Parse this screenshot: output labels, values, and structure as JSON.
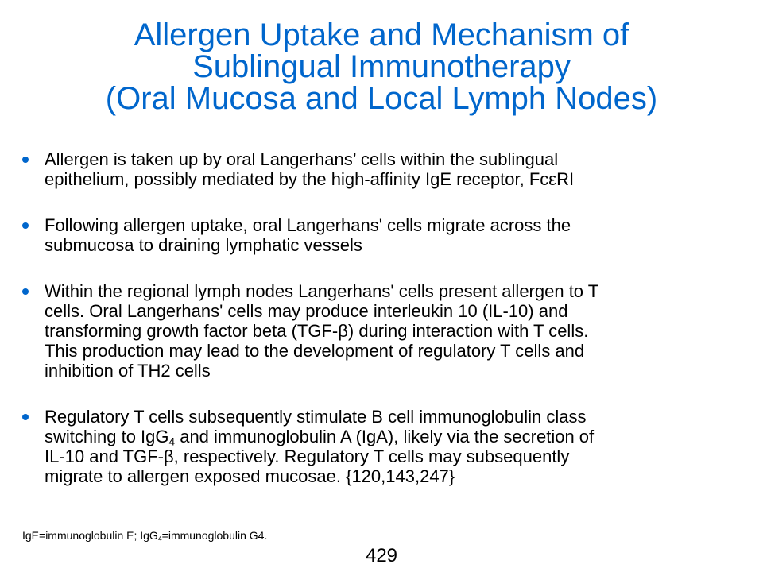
{
  "colors": {
    "accent": "#0066CC",
    "text": "#000000",
    "background": "#FFFFFF"
  },
  "slide": {
    "title_lines": [
      "Allergen Uptake and Mechanism of",
      "Sublingual Immunotherapy",
      "(Oral Mucosa and Local Lymph Nodes)"
    ],
    "bullets": [
      {
        "lines": [
          "Allergen is taken up by oral Langerhans’ cells within the sublingual",
          "epithelium, possibly mediated by the high-affinity IgE receptor, FcεRI"
        ]
      },
      {
        "lines": [
          "Following allergen uptake, oral Langerhans' cells migrate across the",
          "submucosa to draining lymphatic vessels"
        ]
      },
      {
        "lines": [
          "Within the regional lymph nodes Langerhans' cells present allergen to T",
          "cells. Oral Langerhans' cells may produce interleukin 10 (IL-10) and",
          "transforming growth factor beta (TGF-β) during interaction with T cells.",
          "This production may lead to the development of regulatory T cells and",
          "inhibition of TH2 cells"
        ]
      },
      {
        "line1": "Regulatory T cells subsequently stimulate B cell immunoglobulin class",
        "line2_pre": "switching to IgG",
        "line2_sub": "4",
        "line2_post": " and immunoglobulin A (IgA), likely via the secretion of",
        "line3": "IL-10 and TGF-β, respectively. Regulatory T cells may subsequently",
        "line4": "migrate to allergen exposed mucosae. {120,143,247}"
      }
    ],
    "footnote": {
      "pre": "IgE=immunoglobulin E; IgG",
      "sub": "4",
      "post": "=immunoglobulin G4."
    },
    "page_number": "429"
  }
}
